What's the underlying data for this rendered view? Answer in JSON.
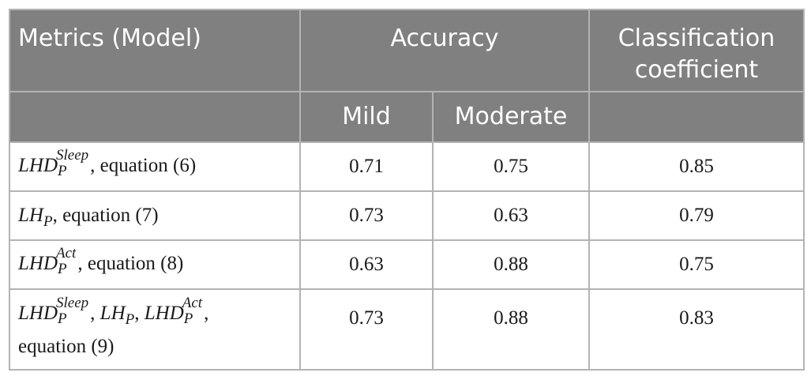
{
  "header": {
    "metrics_label": "Metrics (Model)",
    "accuracy_label": "Accuracy",
    "classification_label": "Classification coefficient",
    "mild_label": "Mild",
    "moderate_label": "Moderate"
  },
  "rows": [
    {
      "metric": {
        "base": "LHD",
        "sup": "Sleep",
        "sub": "P",
        "suffix": ", equation (6)"
      },
      "mild": "0.71",
      "moderate": "0.75",
      "coef": "0.85"
    },
    {
      "metric": {
        "base": "LH",
        "sub": "P",
        "suffix": ", equation (7)"
      },
      "mild": "0.73",
      "moderate": "0.63",
      "coef": "0.79"
    },
    {
      "metric": {
        "base": "LHD",
        "sup": "Act",
        "sub": "P",
        "suffix": ", equation (8)"
      },
      "mild": "0.63",
      "moderate": "0.88",
      "coef": "0.75"
    },
    {
      "metric": {
        "t1_base": "LHD",
        "t1_sup": "Sleep",
        "t1_sub": "P",
        "sep1": ", ",
        "t2_base": "LH",
        "t2_sub": "P",
        "sep2": ", ",
        "t3_base": "LHD",
        "t3_sup": "Act",
        "t3_sub": "P",
        "sep3": ",",
        "line2": "equation (9)"
      },
      "mild": "0.73",
      "moderate": "0.88",
      "coef": "0.83"
    }
  ]
}
